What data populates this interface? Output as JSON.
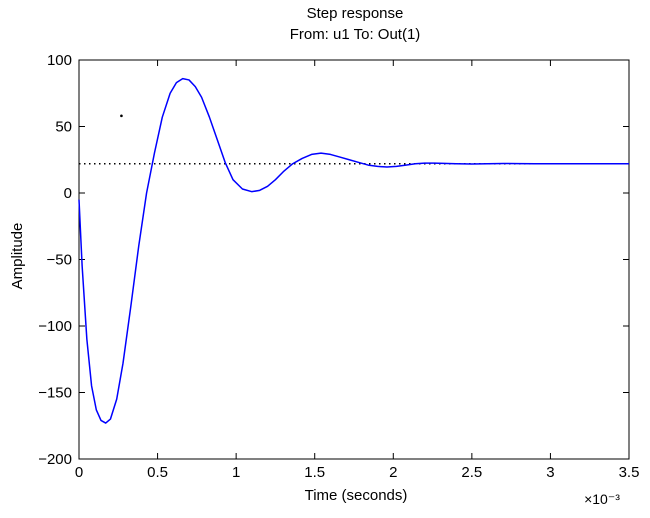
{
  "chart_data": {
    "type": "line",
    "title": "Step response",
    "subtitle": "From: u1  To: Out(1)",
    "xlabel": "Time (seconds)",
    "ylabel": "Amplitude",
    "x_multiplier": "×10⁻³",
    "xlim": [
      0,
      3.5
    ],
    "ylim": [
      -200,
      100
    ],
    "xticks": [
      "0",
      "0.5",
      "1",
      "1.5",
      "2",
      "2.5",
      "3",
      "3.5"
    ],
    "xtick_values": [
      0,
      0.5,
      1,
      1.5,
      2,
      2.5,
      3,
      3.5
    ],
    "yticks": [
      "100",
      "50",
      "0",
      "−50",
      "−100",
      "−150",
      "−200"
    ],
    "ytick_values": [
      100,
      50,
      0,
      -50,
      -100,
      -150,
      -200
    ],
    "grid": false,
    "series": [
      {
        "color": "#0000ff",
        "x": [
          0,
          0.02,
          0.05,
          0.08,
          0.11,
          0.14,
          0.17,
          0.2,
          0.24,
          0.28,
          0.33,
          0.38,
          0.43,
          0.48,
          0.53,
          0.58,
          0.62,
          0.66,
          0.7,
          0.74,
          0.78,
          0.83,
          0.88,
          0.93,
          0.98,
          1.04,
          1.1,
          1.15,
          1.2,
          1.25,
          1.3,
          1.36,
          1.42,
          1.48,
          1.54,
          1.6,
          1.66,
          1.72,
          1.78,
          1.84,
          1.9,
          1.96,
          2.02,
          2.08,
          2.14,
          2.2,
          2.26,
          2.32,
          2.4,
          2.5,
          2.6,
          2.7,
          2.8,
          2.9,
          3.0,
          3.1,
          3.2,
          3.3,
          3.4,
          3.5
        ],
        "y": [
          -5,
          -55,
          -110,
          -145,
          -163,
          -171,
          -173,
          -170,
          -155,
          -128,
          -85,
          -40,
          0,
          30,
          57,
          75,
          83,
          86,
          85,
          80,
          72,
          57,
          40,
          23,
          10,
          3,
          1,
          2,
          5,
          10,
          16,
          22,
          26,
          29,
          30,
          29,
          27,
          25,
          23,
          21,
          20,
          19.5,
          20,
          21,
          22,
          22.5,
          22.5,
          22.3,
          22,
          21.8,
          22,
          22.2,
          22.1,
          22,
          22,
          22,
          22,
          22,
          22,
          22
        ]
      }
    ],
    "reference_line": {
      "y": 22,
      "style": "dotted",
      "color": "#000000"
    },
    "stray_marker": {
      "x": 0.27,
      "y": 58
    }
  }
}
